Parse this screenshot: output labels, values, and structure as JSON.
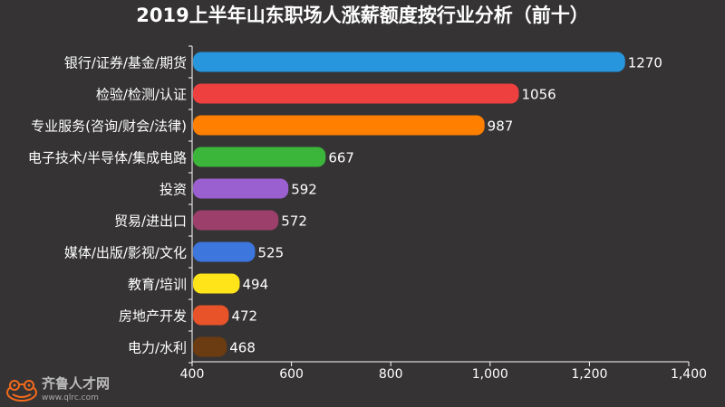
{
  "chart_data": {
    "type": "bar",
    "orientation": "horizontal",
    "title": "2019上半年山东职场人涨薪额度按行业分析（前十）",
    "categories": [
      "银行/证券/基金/期货",
      "检验/检测/认证",
      "专业服务(咨询/财会/法律)",
      "电子技术/半导体/集成电路",
      "投资",
      "贸易/进出口",
      "媒体/出版/影视/文化",
      "教育/培训",
      "房地产开发",
      "电力/水利"
    ],
    "values": [
      1270,
      1056,
      987,
      667,
      592,
      572,
      525,
      494,
      472,
      468
    ],
    "colors": [
      "#2896dc",
      "#ef4040",
      "#ff7f00",
      "#3bb53a",
      "#9a60cf",
      "#9c3f6b",
      "#3d76dc",
      "#ffe41a",
      "#e9532a",
      "#6b3b12"
    ],
    "xlim": [
      400,
      1400
    ],
    "xticks": [
      "400",
      "600",
      "800",
      "1,000",
      "1,200",
      "1,400"
    ],
    "xtick_values": [
      400,
      600,
      800,
      1000,
      1200,
      1400
    ],
    "xlabel": "",
    "ylabel": "",
    "grid": false,
    "legend": "none"
  },
  "logo": {
    "name": "齐鲁人才网",
    "url": "www.qlrc.com"
  }
}
